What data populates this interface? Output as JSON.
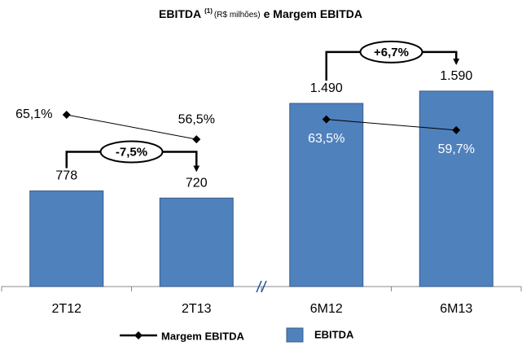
{
  "chart_data": {
    "type": "bar-line",
    "title": "EBITDA",
    "title_superscript": "(1)",
    "title_unit": "(R$ milhões)",
    "title_suffix": "e Margem EBITDA",
    "categories": [
      "2T12",
      "2T13",
      "6M12",
      "6M13"
    ],
    "axis_break_after": 1,
    "series": [
      {
        "name": "EBITDA",
        "type": "bar",
        "color": "#4f81bd",
        "values": [
          778,
          720,
          1490,
          1590
        ],
        "value_labels": [
          "778",
          "720",
          "1.490",
          "1.590"
        ]
      },
      {
        "name": "Margem EBITDA",
        "type": "line",
        "axis": "y2",
        "color": "#000000",
        "values": [
          65.1,
          56.5,
          63.5,
          59.7
        ],
        "value_labels": [
          "65,1%",
          "56,5%",
          "63,5%",
          "59,7%"
        ]
      }
    ],
    "ylim": [
      0,
      2000
    ],
    "y2lim": [
      5,
      91
    ],
    "annotations": [
      {
        "text": "-7,5%",
        "from": 0,
        "to": 1
      },
      {
        "text": "+6,7%",
        "from": 2,
        "to": 3
      }
    ]
  }
}
